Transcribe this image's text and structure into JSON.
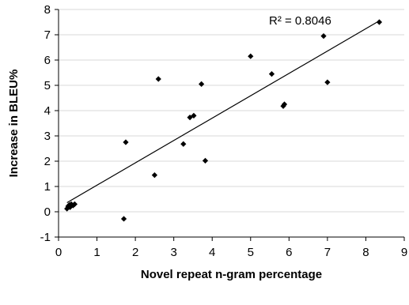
{
  "chart_data": {
    "type": "scatter",
    "title": "",
    "xlabel": "Novel repeat n-gram percentage",
    "ylabel": "Increase in BLEU%",
    "xlim": [
      0,
      9
    ],
    "ylim": [
      -1,
      8
    ],
    "x_ticks": [
      "0",
      "1",
      "2",
      "3",
      "4",
      "5",
      "6",
      "7",
      "8",
      "9"
    ],
    "y_ticks": [
      "-1",
      "0",
      "1",
      "2",
      "3",
      "4",
      "5",
      "6",
      "7",
      "8"
    ],
    "grid": "horizontal",
    "legend": "none",
    "marker": "diamond",
    "point_color": "#000000",
    "points": [
      {
        "x": 0.22,
        "y": 0.12
      },
      {
        "x": 0.25,
        "y": 0.22
      },
      {
        "x": 0.28,
        "y": 0.27
      },
      {
        "x": 0.3,
        "y": 0.18
      },
      {
        "x": 0.33,
        "y": 0.3
      },
      {
        "x": 0.38,
        "y": 0.25
      },
      {
        "x": 0.42,
        "y": 0.3
      },
      {
        "x": 1.7,
        "y": -0.28
      },
      {
        "x": 1.75,
        "y": 2.75
      },
      {
        "x": 2.5,
        "y": 1.45
      },
      {
        "x": 2.6,
        "y": 5.25
      },
      {
        "x": 3.25,
        "y": 2.68
      },
      {
        "x": 3.42,
        "y": 3.73
      },
      {
        "x": 3.52,
        "y": 3.8
      },
      {
        "x": 3.72,
        "y": 5.05
      },
      {
        "x": 3.82,
        "y": 2.02
      },
      {
        "x": 5.0,
        "y": 6.15
      },
      {
        "x": 5.55,
        "y": 5.45
      },
      {
        "x": 5.85,
        "y": 4.18
      },
      {
        "x": 5.88,
        "y": 4.25
      },
      {
        "x": 6.9,
        "y": 6.95
      },
      {
        "x": 7.0,
        "y": 5.12
      },
      {
        "x": 8.35,
        "y": 7.5
      }
    ],
    "trendline": {
      "type": "linear",
      "x_start": 0.22,
      "x_end": 8.35,
      "y_start": 0.36,
      "y_end": 7.55,
      "annotation": "R² = 0.8046"
    }
  }
}
